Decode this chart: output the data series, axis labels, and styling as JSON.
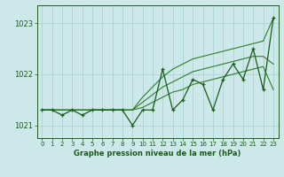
{
  "x": [
    0,
    1,
    2,
    3,
    4,
    5,
    6,
    7,
    8,
    9,
    10,
    11,
    12,
    13,
    14,
    15,
    16,
    17,
    18,
    19,
    20,
    21,
    22,
    23
  ],
  "line_main": [
    1021.3,
    1021.3,
    1021.2,
    1021.3,
    1021.2,
    1021.3,
    1021.3,
    1021.3,
    1021.3,
    1021.0,
    1021.3,
    1021.3,
    1022.1,
    1021.3,
    1021.5,
    1021.9,
    1021.8,
    1021.3,
    1021.9,
    1022.2,
    1021.9,
    1022.5,
    1021.7,
    1023.1
  ],
  "line_upper": [
    1021.3,
    1021.3,
    1021.3,
    1021.3,
    1021.3,
    1021.3,
    1021.3,
    1021.3,
    1021.3,
    1021.3,
    1021.55,
    1021.75,
    1021.95,
    1022.1,
    1022.2,
    1022.3,
    1022.35,
    1022.4,
    1022.45,
    1022.5,
    1022.55,
    1022.6,
    1022.65,
    1023.1
  ],
  "line_mid_upper": [
    1021.3,
    1021.3,
    1021.3,
    1021.3,
    1021.3,
    1021.3,
    1021.3,
    1021.3,
    1021.3,
    1021.3,
    1021.45,
    1021.6,
    1021.75,
    1021.85,
    1021.95,
    1022.05,
    1022.1,
    1022.15,
    1022.2,
    1022.25,
    1022.3,
    1022.35,
    1022.35,
    1022.2
  ],
  "line_mid_lower": [
    1021.3,
    1021.3,
    1021.3,
    1021.3,
    1021.3,
    1021.3,
    1021.3,
    1021.3,
    1021.3,
    1021.3,
    1021.35,
    1021.45,
    1021.55,
    1021.65,
    1021.7,
    1021.8,
    1021.85,
    1021.9,
    1021.95,
    1022.0,
    1022.05,
    1022.1,
    1022.15,
    1021.7
  ],
  "line_color_main": "#1a5c1a",
  "line_color_envelope": "#2e7d2e",
  "background_color": "#cce8e8",
  "grid_color": "#aad4d4",
  "text_color": "#1a5c1a",
  "xlabel": "Graphe pression niveau de la mer (hPa)",
  "ylim": [
    1020.75,
    1023.35
  ],
  "yticks": [
    1021,
    1022,
    1023
  ],
  "xticks": [
    0,
    1,
    2,
    3,
    4,
    5,
    6,
    7,
    8,
    9,
    10,
    11,
    12,
    13,
    14,
    15,
    16,
    17,
    18,
    19,
    20,
    21,
    22,
    23
  ]
}
